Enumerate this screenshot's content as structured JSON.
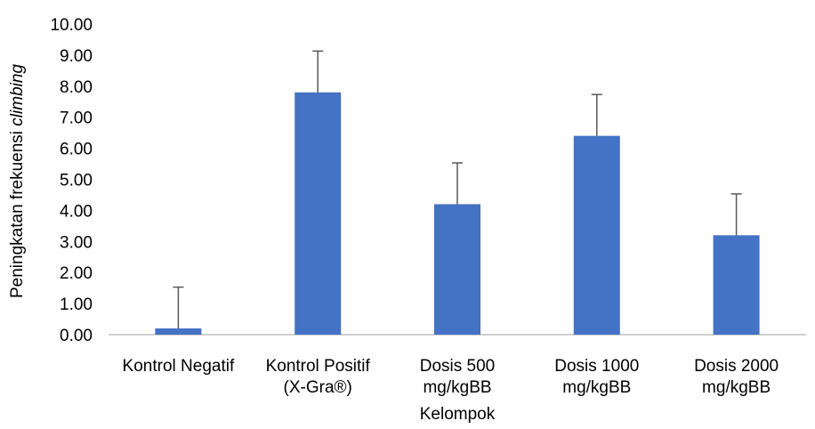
{
  "chart_data": {
    "type": "bar",
    "title": "",
    "xlabel": "Kelompok",
    "ylabel_prefix": "Peningkatan frekuensi ",
    "ylabel_italic": "climbing",
    "categories": [
      [
        "Kontrol Negatif"
      ],
      [
        "Kontrol Positif",
        "(X-Gra®)"
      ],
      [
        "Dosis 500",
        "mg/kgBB"
      ],
      [
        "Dosis 1000",
        "mg/kgBB"
      ],
      [
        "Dosis 2000",
        "mg/kgBB"
      ]
    ],
    "values": [
      0.2,
      7.8,
      4.2,
      6.4,
      3.2
    ],
    "error_plus": [
      1.33,
      1.33,
      1.33,
      1.33,
      1.33
    ],
    "ylim": [
      0,
      10
    ],
    "yticks": [
      "0.00",
      "1.00",
      "2.00",
      "3.00",
      "4.00",
      "5.00",
      "6.00",
      "7.00",
      "8.00",
      "9.00",
      "10.00"
    ],
    "grid": false,
    "bar_color": "#4472C4",
    "error_color": "#595959",
    "axis_color": "#BFBFBF"
  }
}
